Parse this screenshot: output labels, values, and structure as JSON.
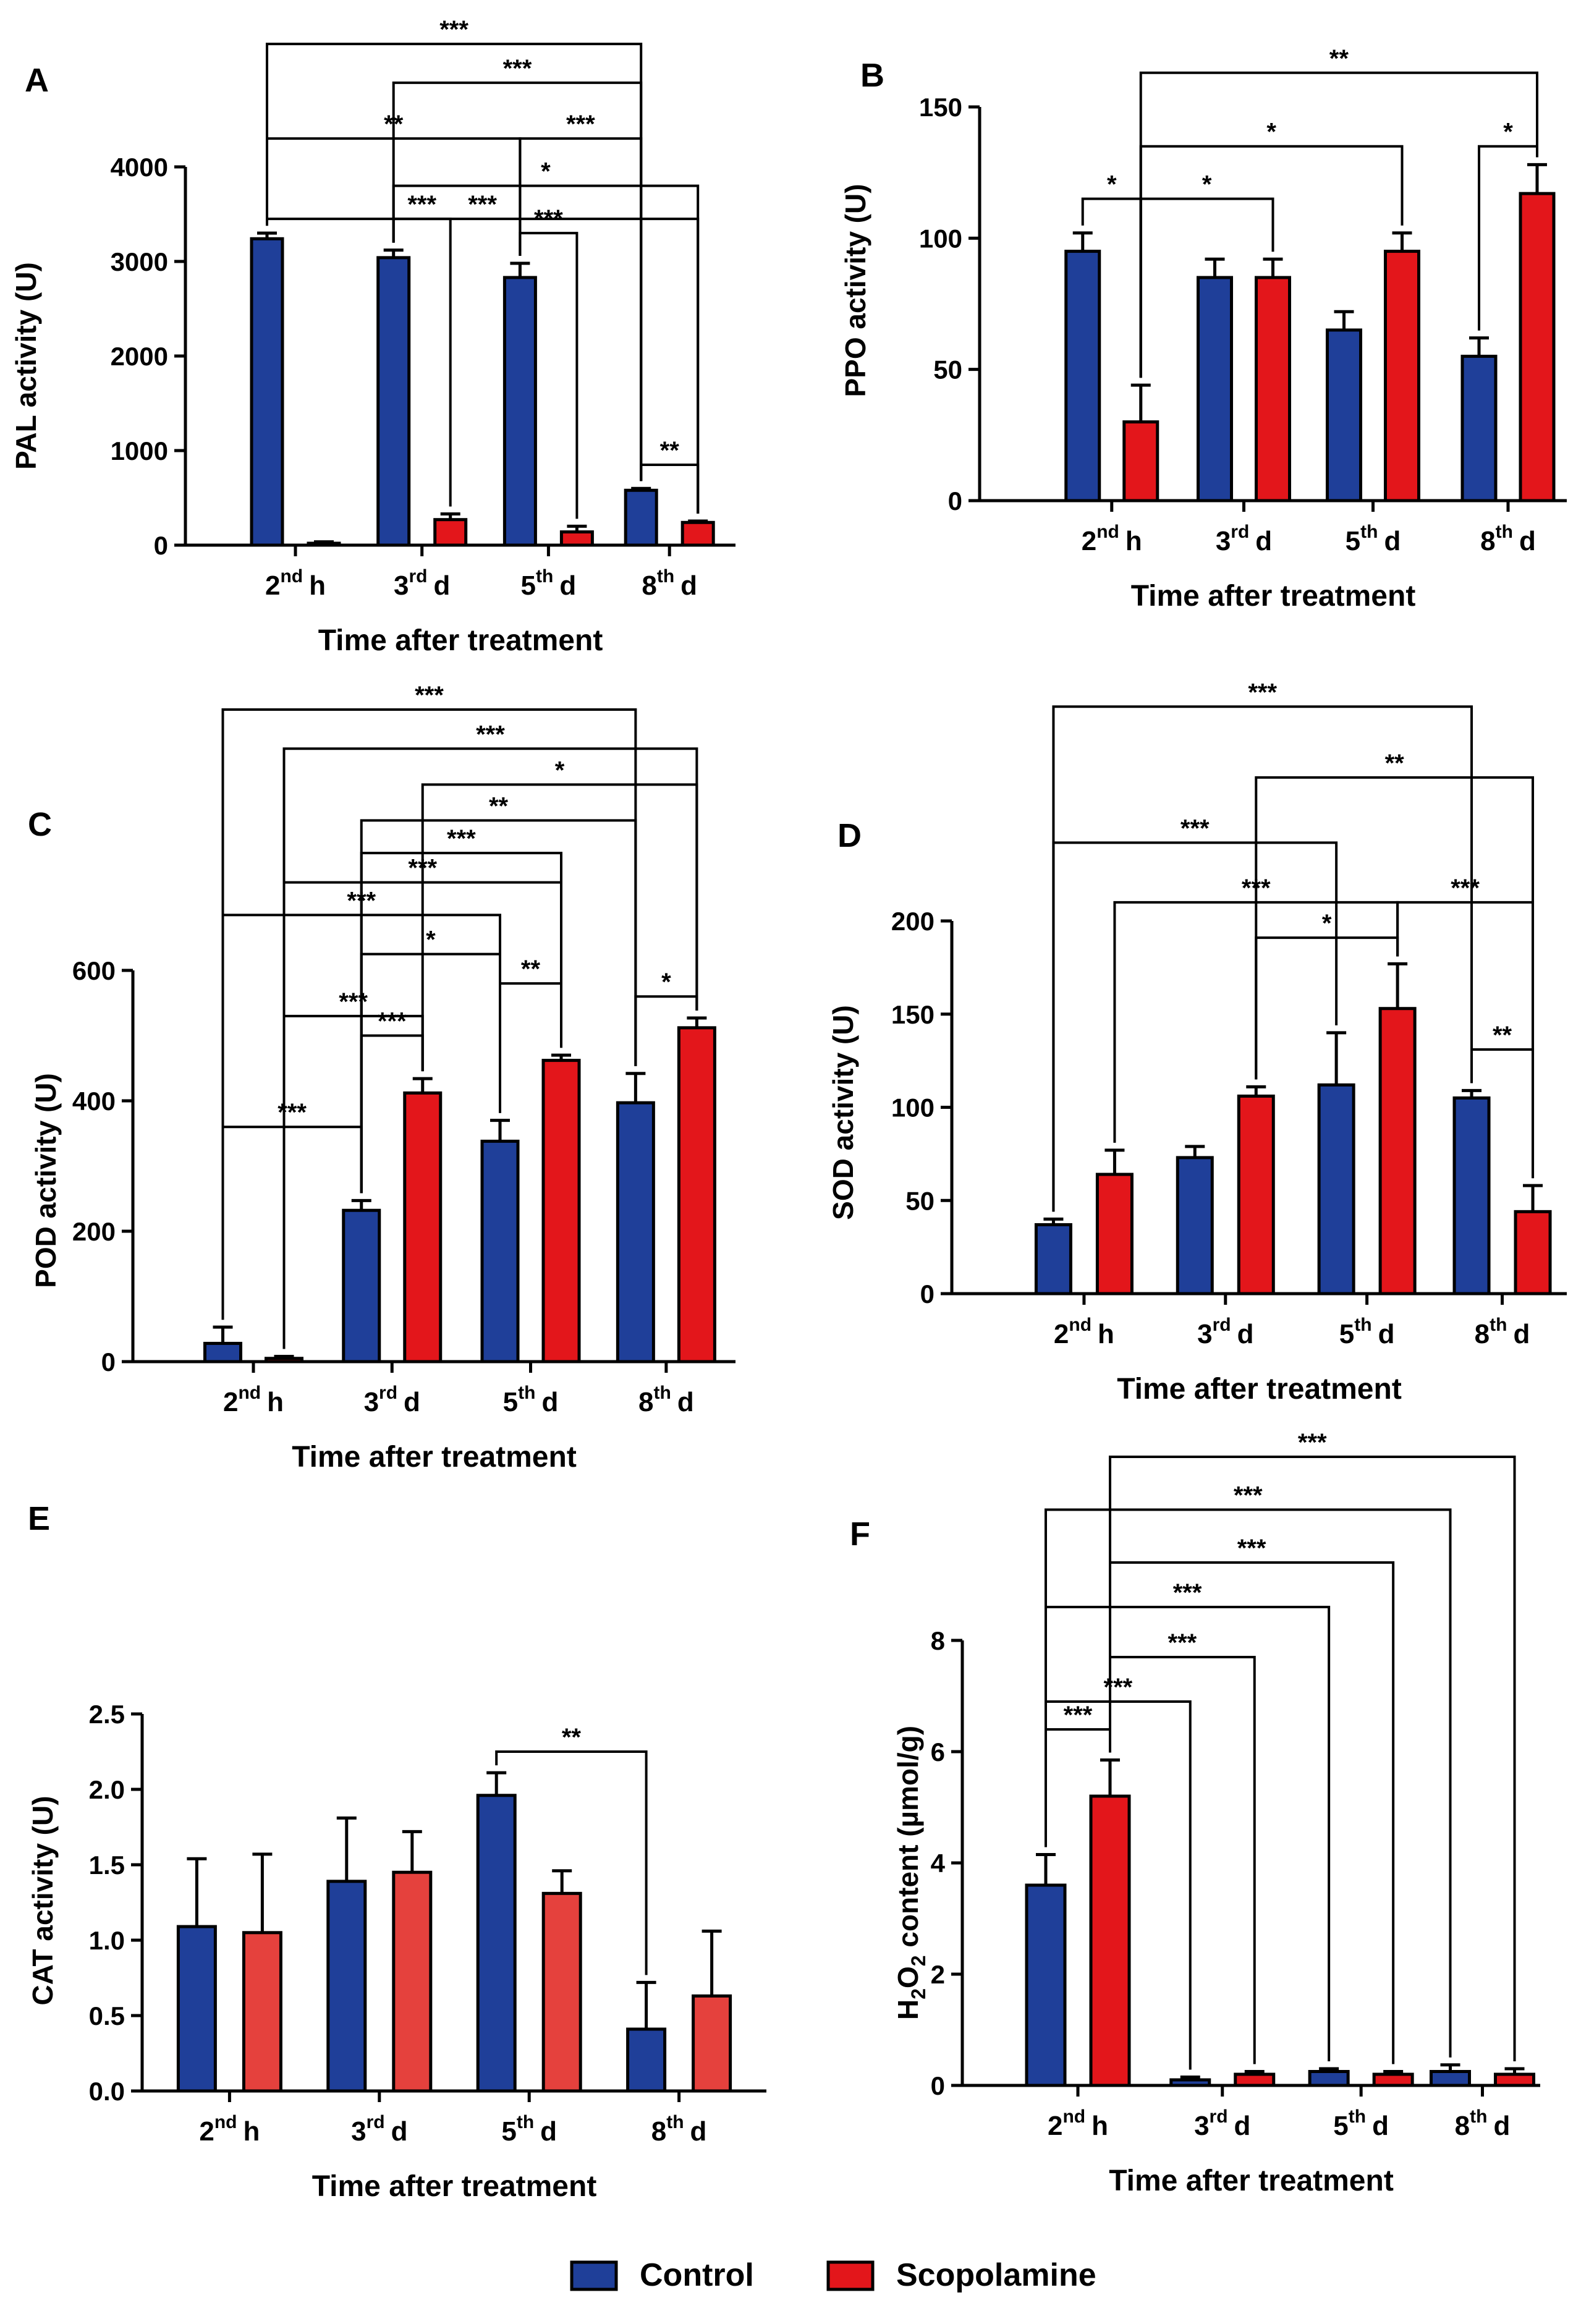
{
  "figure": {
    "legend_entries": [
      {
        "name": "Control",
        "color": "#1f3f99"
      },
      {
        "name": "Scopolamine",
        "color": "#e3161b"
      }
    ]
  },
  "chart_data": [
    {
      "panel": "A",
      "type": "bar",
      "title": "",
      "xlabel": "Time after treatment",
      "ylabel": "PAL activity (U)",
      "ylim": [
        0,
        4000
      ],
      "yticks": [
        "0",
        "1000",
        "2000",
        "3000",
        "4000"
      ],
      "categories": [
        {
          "n": "2",
          "sup": "nd",
          "u": "h"
        },
        {
          "n": "3",
          "sup": "rd",
          "u": "d"
        },
        {
          "n": "5",
          "sup": "th",
          "u": "d"
        },
        {
          "n": "8",
          "sup": "th",
          "u": "d"
        }
      ],
      "series": [
        {
          "name": "Control",
          "color": "#1f3f99",
          "values": [
            3240,
            3040,
            2830,
            580
          ],
          "errors": [
            60,
            80,
            150,
            20
          ]
        },
        {
          "name": "Scopolamine",
          "color": "#e3161b",
          "values": [
            20,
            270,
            140,
            240
          ],
          "errors": [
            15,
            60,
            60,
            15
          ]
        }
      ],
      "annotations": [
        {
          "label": "***",
          "bar": 0.5,
          "y": 3450,
          "ends": [
            [
              0,
              0
            ],
            [
              3,
              1
            ]
          ]
        },
        {
          "label": "*",
          "bar": 0.5,
          "y": 3800,
          "ends": [
            [
              1,
              0
            ],
            [
              3,
              1
            ]
          ]
        },
        {
          "label": "***",
          "bar": 1.5,
          "y": 3450,
          "ends": [
            [
              1,
              0
            ],
            [
              1,
              1
            ]
          ]
        },
        {
          "label": "***",
          "bar": 2.5,
          "y": 3300,
          "ends": [
            [
              2,
              0
            ],
            [
              2,
              1
            ]
          ]
        },
        {
          "label": "**",
          "bar": 3.5,
          "y": 850,
          "ends": [
            [
              3,
              0
            ],
            [
              3,
              1
            ]
          ]
        },
        {
          "label": "**",
          "y": 4300,
          "stem": 2.0,
          "ends": [
            [
              0,
              0
            ],
            [
              2,
              0
            ]
          ]
        },
        {
          "label": "***",
          "y": 4300,
          "stem": 2.0,
          "ends": [
            [
              2,
              0
            ],
            [
              3,
              0
            ]
          ]
        },
        {
          "label": "***",
          "y": 4890,
          "ends": [
            [
              1,
              0
            ],
            [
              3,
              0
            ]
          ]
        },
        {
          "label": "***",
          "y": 5300,
          "ends": [
            [
              0,
              0
            ],
            [
              3,
              0
            ]
          ]
        }
      ]
    },
    {
      "panel": "B",
      "type": "bar",
      "title": "",
      "xlabel": "Time after treatment",
      "ylabel": "PPO activity (U)",
      "ylim": [
        0,
        150
      ],
      "yticks": [
        "0",
        "50",
        "100",
        "150"
      ],
      "categories": [
        {
          "n": "2",
          "sup": "nd",
          "u": "h"
        },
        {
          "n": "3",
          "sup": "rd",
          "u": "d"
        },
        {
          "n": "5",
          "sup": "th",
          "u": "d"
        },
        {
          "n": "8",
          "sup": "th",
          "u": "d"
        }
      ],
      "series": [
        {
          "name": "Control",
          "color": "#1f3f99",
          "values": [
            95,
            85,
            65,
            55
          ],
          "errors": [
            7,
            7,
            7,
            7
          ]
        },
        {
          "name": "Scopolamine",
          "color": "#e3161b",
          "values": [
            30,
            85,
            95,
            117
          ],
          "errors": [
            14,
            7,
            7,
            11
          ]
        }
      ],
      "annotations": [
        {
          "label": "*",
          "y": 115,
          "stem": 0.6,
          "ends": [
            [
              0,
              0
            ],
            [
              0,
              1
            ]
          ]
        },
        {
          "label": "*",
          "y": 115,
          "stem": 0.6,
          "ends": [
            [
              0,
              1
            ],
            [
              1,
              1
            ]
          ]
        },
        {
          "label": "*",
          "y": 135,
          "ends": [
            [
              0,
              1
            ],
            [
              2,
              1
            ]
          ]
        },
        {
          "label": "*",
          "y": 135,
          "ends": [
            [
              3,
              0
            ],
            [
              3,
              1
            ]
          ]
        },
        {
          "label": "**",
          "y": 163,
          "ends": [
            [
              0,
              1
            ],
            [
              3,
              1
            ]
          ]
        }
      ]
    },
    {
      "panel": "C",
      "type": "bar",
      "title": "",
      "xlabel": "Time after treatment",
      "ylabel": "POD activity (U)",
      "ylim": [
        0,
        600
      ],
      "yticks": [
        "0",
        "200",
        "400",
        "600"
      ],
      "categories": [
        {
          "n": "2",
          "sup": "nd",
          "u": "h"
        },
        {
          "n": "3",
          "sup": "rd",
          "u": "d"
        },
        {
          "n": "5",
          "sup": "th",
          "u": "d"
        },
        {
          "n": "8",
          "sup": "th",
          "u": "d"
        }
      ],
      "series": [
        {
          "name": "Control",
          "color": "#1f3f99",
          "values": [
            28,
            232,
            338,
            397
          ],
          "errors": [
            25,
            15,
            32,
            45
          ]
        },
        {
          "name": "Scopolamine",
          "color": "#e3161b",
          "values": [
            5,
            412,
            462,
            512
          ],
          "errors": [
            3,
            22,
            8,
            15
          ]
        }
      ],
      "annotations": [
        {
          "label": "***",
          "y": 360,
          "ends": [
            [
              0,
              0
            ],
            [
              1,
              0
            ]
          ]
        },
        {
          "label": "***",
          "y": 500,
          "ends": [
            [
              1,
              0
            ],
            [
              1,
              1
            ]
          ]
        },
        {
          "label": "***",
          "y": 530,
          "ends": [
            [
              0,
              1
            ],
            [
              1,
              1
            ]
          ]
        },
        {
          "label": "**",
          "y": 580,
          "ends": [
            [
              2,
              0
            ],
            [
              2,
              1
            ]
          ]
        },
        {
          "label": "*",
          "y": 560,
          "ends": [
            [
              3,
              0
            ],
            [
              3,
              1
            ]
          ]
        },
        {
          "label": "*",
          "y": 625,
          "ends": [
            [
              1,
              0
            ],
            [
              2,
              0
            ]
          ]
        },
        {
          "label": "***",
          "y": 685,
          "ends": [
            [
              0,
              0
            ],
            [
              2,
              0
            ]
          ]
        },
        {
          "label": "***",
          "y": 735,
          "ends": [
            [
              0,
              1
            ],
            [
              2,
              1
            ]
          ]
        },
        {
          "label": "***",
          "y": 780,
          "ends": [
            [
              1,
              0
            ],
            [
              2,
              1
            ]
          ]
        },
        {
          "label": "**",
          "y": 830,
          "ends": [
            [
              1,
              0
            ],
            [
              3,
              0
            ]
          ]
        },
        {
          "label": "*",
          "y": 885,
          "ends": [
            [
              1,
              1
            ],
            [
              3,
              1
            ]
          ]
        },
        {
          "label": "***",
          "y": 940,
          "ends": [
            [
              0,
              1
            ],
            [
              3,
              1
            ]
          ]
        },
        {
          "label": "***",
          "y": 1000,
          "ends": [
            [
              0,
              0
            ],
            [
              3,
              0
            ]
          ]
        }
      ]
    },
    {
      "panel": "D",
      "type": "bar",
      "title": "",
      "xlabel": "Time after treatment",
      "ylabel": "SOD activity (U)",
      "ylim": [
        0,
        200
      ],
      "yticks": [
        "0",
        "50",
        "100",
        "150",
        "200"
      ],
      "categories": [
        {
          "n": "2",
          "sup": "nd",
          "u": "h"
        },
        {
          "n": "3",
          "sup": "rd",
          "u": "d"
        },
        {
          "n": "5",
          "sup": "th",
          "u": "d"
        },
        {
          "n": "8",
          "sup": "th",
          "u": "d"
        }
      ],
      "series": [
        {
          "name": "Control",
          "color": "#1f3f99",
          "values": [
            37,
            73,
            112,
            105
          ],
          "errors": [
            3,
            6,
            28,
            4
          ]
        },
        {
          "name": "Scopolamine",
          "color": "#e3161b",
          "values": [
            64,
            106,
            153,
            44
          ],
          "errors": [
            13,
            5,
            24,
            14
          ]
        }
      ],
      "annotations": [
        {
          "label": "**",
          "y": 131,
          "ends": [
            [
              3,
              0
            ],
            [
              3,
              1
            ]
          ]
        },
        {
          "label": "*",
          "y": 191,
          "ends": [
            [
              1,
              1
            ],
            [
              2,
              1
            ]
          ]
        },
        {
          "label": "***",
          "y": 210,
          "stem": 2.3,
          "ends": [
            [
              0,
              1
            ],
            [
              2,
              1
            ]
          ]
        },
        {
          "label": "***",
          "y": 210,
          "stem": 2.3,
          "ends": [
            [
              2,
              1
            ],
            [
              3,
              1
            ]
          ]
        },
        {
          "label": "***",
          "y": 242,
          "ends": [
            [
              0,
              0
            ],
            [
              2,
              0
            ]
          ]
        },
        {
          "label": "**",
          "y": 277,
          "ends": [
            [
              1,
              1
            ],
            [
              3,
              1
            ]
          ]
        },
        {
          "label": "***",
          "y": 315,
          "ends": [
            [
              0,
              0
            ],
            [
              3,
              0
            ]
          ]
        }
      ]
    },
    {
      "panel": "E",
      "type": "bar",
      "title": "",
      "xlabel": "Time after treatment",
      "ylabel": "CAT activity (U)",
      "ylim": [
        0,
        2.5
      ],
      "yticks": [
        "0.0",
        "0.5",
        "1.0",
        "1.5",
        "2.0",
        "2.5"
      ],
      "categories": [
        {
          "n": "2",
          "sup": "nd",
          "u": "h"
        },
        {
          "n": "3",
          "sup": "rd",
          "u": "d"
        },
        {
          "n": "5",
          "sup": "th",
          "u": "d"
        },
        {
          "n": "8",
          "sup": "th",
          "u": "d"
        }
      ],
      "series": [
        {
          "name": "Control",
          "color": "#1f3f99",
          "values": [
            1.09,
            1.39,
            1.96,
            0.41
          ],
          "errors": [
            0.45,
            0.42,
            0.15,
            0.31
          ]
        },
        {
          "name": "Scopolamine",
          "color": "#e5413d",
          "values": [
            1.05,
            1.45,
            1.31,
            0.63
          ],
          "errors": [
            0.52,
            0.27,
            0.15,
            0.43
          ]
        }
      ],
      "annotations": [
        {
          "label": "**",
          "y": 2.25,
          "ends": [
            [
              2,
              0
            ],
            [
              3,
              0
            ]
          ]
        }
      ]
    },
    {
      "panel": "F",
      "type": "bar",
      "title": "",
      "xlabel": "Time after treatment",
      "ylabel": "H2O2 content (µmol/g)",
      "ylim": [
        0,
        8
      ],
      "yticks": [
        "0",
        "2",
        "4",
        "6",
        "8"
      ],
      "categories": [
        {
          "n": "2",
          "sup": "nd",
          "u": "h"
        },
        {
          "n": "3",
          "sup": "rd",
          "u": "d"
        },
        {
          "n": "5",
          "sup": "th",
          "u": "d"
        },
        {
          "n": "8",
          "sup": "th",
          "u": "d"
        }
      ],
      "series": [
        {
          "name": "Control",
          "color": "#1f3f99",
          "values": [
            3.6,
            0.1,
            0.25,
            0.25
          ],
          "errors": [
            0.55,
            0.05,
            0.05,
            0.12
          ]
        },
        {
          "name": "Scopolamine",
          "color": "#e3161b",
          "values": [
            5.2,
            0.2,
            0.2,
            0.2
          ],
          "errors": [
            0.65,
            0.05,
            0.05,
            0.1
          ]
        }
      ],
      "annotations": [
        {
          "label": "***",
          "y": 6.4,
          "ends": [
            [
              0,
              0
            ],
            [
              0,
              1
            ]
          ]
        },
        {
          "label": "***",
          "y": 6.9,
          "ends": [
            [
              0,
              0
            ],
            [
              1,
              0
            ]
          ]
        },
        {
          "label": "***",
          "y": 7.7,
          "ends": [
            [
              0,
              1
            ],
            [
              1,
              1
            ]
          ]
        },
        {
          "label": "***",
          "y": 8.6,
          "ends": [
            [
              0,
              0
            ],
            [
              2,
              0
            ]
          ]
        },
        {
          "label": "***",
          "y": 9.4,
          "ends": [
            [
              0,
              1
            ],
            [
              2,
              1
            ]
          ]
        },
        {
          "label": "***",
          "y": 10.35,
          "ends": [
            [
              0,
              0
            ],
            [
              3,
              0
            ]
          ]
        },
        {
          "label": "***",
          "y": 11.3,
          "ends": [
            [
              0,
              1
            ],
            [
              3,
              1
            ]
          ]
        }
      ]
    }
  ]
}
